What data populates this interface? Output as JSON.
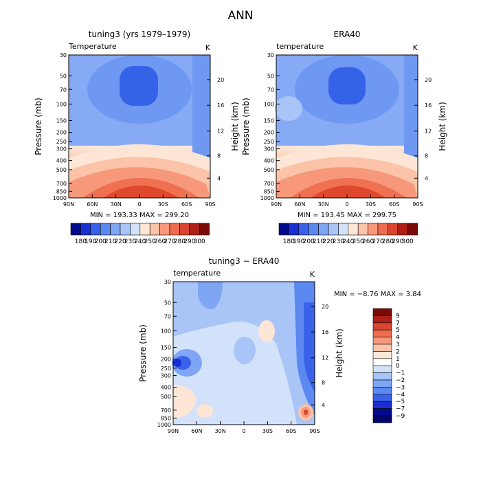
{
  "title": "ANN",
  "panels": [
    {
      "title": "tuning3 (yrs 1979–1979)",
      "variable": "Temperature",
      "unit": "K",
      "ylabel_left": "Pressure (mb)",
      "ylabel_right": "Height (km)",
      "pressure_ticks": [
        "30",
        "50",
        "70",
        "100",
        "150",
        "200",
        "250",
        "300",
        "400",
        "500",
        "700",
        "850",
        "1000"
      ],
      "height_ticks": [
        "20",
        "16",
        "12",
        "8",
        "4"
      ],
      "lat_ticks": [
        "90N",
        "60N",
        "30N",
        "0",
        "30S",
        "60S",
        "90S"
      ],
      "stats": "MIN = 193.33   MAX = 299.20",
      "colorbar_labels": [
        "180",
        "190",
        "200",
        "210",
        "220",
        "230",
        "240",
        "250",
        "260",
        "270",
        "280",
        "290",
        "300"
      ]
    },
    {
      "title": "ERA40",
      "variable": "temperature",
      "unit": "K",
      "ylabel_left": "Pressure (mb)",
      "ylabel_right": "Height (km)",
      "pressure_ticks": [
        "30",
        "50",
        "70",
        "100",
        "150",
        "200",
        "250",
        "300",
        "400",
        "500",
        "700",
        "850",
        "1000"
      ],
      "height_ticks": [
        "20",
        "16",
        "12",
        "8",
        "4"
      ],
      "lat_ticks": [
        "90N",
        "60N",
        "30N",
        "0",
        "30S",
        "60S",
        "90S"
      ],
      "stats": "MIN = 193.45   MAX = 299.75",
      "colorbar_labels": [
        "180",
        "190",
        "200",
        "210",
        "220",
        "230",
        "240",
        "250",
        "260",
        "270",
        "280",
        "290",
        "300"
      ]
    },
    {
      "title": "tuning3 − ERA40",
      "variable": "temperature",
      "unit": "K",
      "ylabel_left": "Pressure (mb)",
      "ylabel_right": "Height (km)",
      "pressure_ticks": [
        "30",
        "50",
        "70",
        "100",
        "150",
        "200",
        "250",
        "300",
        "400",
        "500",
        "700",
        "850",
        "1000"
      ],
      "height_ticks": [
        "20",
        "16",
        "12",
        "8",
        "4"
      ],
      "lat_ticks": [
        "90N",
        "60N",
        "30N",
        "0",
        "30S",
        "60S",
        "90S"
      ],
      "stats": "MIN =   −8.76   MAX =    3.84",
      "colorbar_labels": [
        "9",
        "7",
        "5",
        "4",
        "3",
        "2",
        "1",
        "0",
        "−1",
        "−2",
        "−3",
        "−4",
        "−5",
        "−7",
        "−9"
      ]
    }
  ],
  "chart_data": [
    {
      "type": "heatmap",
      "title": "tuning3 (yrs 1979–1979)",
      "xlabel": "",
      "ylabel": "Pressure (mb)",
      "ylabel_right": "Height (km)",
      "x": [
        "90N",
        "60N",
        "30N",
        "0",
        "30S",
        "60S",
        "90S"
      ],
      "y": [
        30,
        50,
        70,
        100,
        150,
        200,
        250,
        300,
        400,
        500,
        700,
        850,
        1000
      ],
      "y_scale": "log-pressure",
      "min": 193.33,
      "max": 299.2,
      "levels": [
        180,
        190,
        200,
        210,
        220,
        230,
        240,
        250,
        260,
        270,
        280,
        290,
        300
      ],
      "colors": [
        "#000a8c",
        "#1a2fd0",
        "#3a62e8",
        "#5c89f0",
        "#7ea6f5",
        "#a9c4f7",
        "#d2e2fb",
        "#fde6d6",
        "#fbc3a8",
        "#f7987a",
        "#ee6c4f",
        "#d9452f",
        "#b01f16",
        "#7a0a06"
      ]
    },
    {
      "type": "heatmap",
      "title": "ERA40",
      "xlabel": "",
      "ylabel": "Pressure (mb)",
      "ylabel_right": "Height (km)",
      "x": [
        "90N",
        "60N",
        "30N",
        "0",
        "30S",
        "60S",
        "90S"
      ],
      "y": [
        30,
        50,
        70,
        100,
        150,
        200,
        250,
        300,
        400,
        500,
        700,
        850,
        1000
      ],
      "y_scale": "log-pressure",
      "min": 193.45,
      "max": 299.75,
      "levels": [
        180,
        190,
        200,
        210,
        220,
        230,
        240,
        250,
        260,
        270,
        280,
        290,
        300
      ],
      "colors": [
        "#000a8c",
        "#1a2fd0",
        "#3a62e8",
        "#5c89f0",
        "#7ea6f5",
        "#a9c4f7",
        "#d2e2fb",
        "#fde6d6",
        "#fbc3a8",
        "#f7987a",
        "#ee6c4f",
        "#d9452f",
        "#b01f16",
        "#7a0a06"
      ]
    },
    {
      "type": "heatmap",
      "title": "tuning3 − ERA40",
      "xlabel": "",
      "ylabel": "Pressure (mb)",
      "ylabel_right": "Height (km)",
      "x": [
        "90N",
        "60N",
        "30N",
        "0",
        "30S",
        "60S",
        "90S"
      ],
      "y": [
        30,
        50,
        70,
        100,
        150,
        200,
        250,
        300,
        400,
        500,
        700,
        850,
        1000
      ],
      "y_scale": "log-pressure",
      "min": -8.76,
      "max": 3.84,
      "levels": [
        9,
        7,
        5,
        4,
        3,
        2,
        1,
        0,
        -1,
        -2,
        -3,
        -4,
        -5,
        -7,
        -9
      ],
      "colors": [
        "#7a0a06",
        "#b01f16",
        "#d9452f",
        "#ee6c4f",
        "#f7987a",
        "#fbc3a8",
        "#fde6d6",
        "#ffffff",
        "#d2e2fb",
        "#a9c4f7",
        "#7ea6f5",
        "#5c89f0",
        "#3a62e8",
        "#1a2fd0",
        "#000a8c",
        "#00066a"
      ]
    }
  ]
}
